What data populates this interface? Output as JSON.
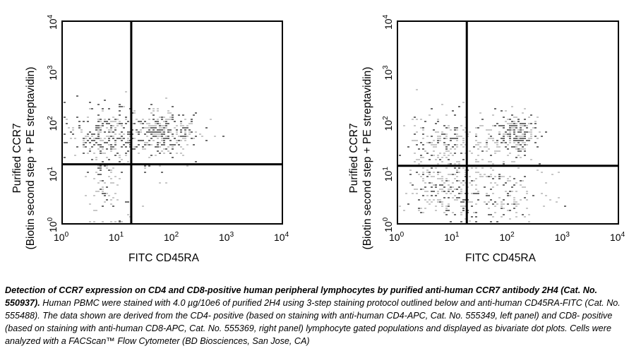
{
  "chart_data": [
    {
      "type": "scatter",
      "subtype": "flow-cytometry-dot-plot",
      "panel": "left (CD4-positive gated)",
      "title": "",
      "xlabel": "FITC CD45RA",
      "ylabel_line1": "Purified CCR7",
      "ylabel_line2": "(Biotin second step + PE streptavidin)",
      "xscale": "log",
      "yscale": "log",
      "xlim": [
        1,
        10000
      ],
      "ylim": [
        1,
        10000
      ],
      "x_ticks": [
        "10^0",
        "10^1",
        "10^2",
        "10^3",
        "10^4"
      ],
      "y_ticks": [
        "10^0",
        "10^1",
        "10^2",
        "10^3",
        "10^4"
      ],
      "quadrant_gate": {
        "x": 18,
        "y": 15
      },
      "grid": false,
      "populations": [
        {
          "name": "CD45RA- CCR7+",
          "x_center": 6,
          "y_center": 60,
          "x_spread_decades": 0.35,
          "y_spread_decades": 0.3,
          "density": "high",
          "count": 260
        },
        {
          "name": "CD45RA+ CCR7+",
          "x_center": 60,
          "y_center": 65,
          "x_spread_decades": 0.35,
          "y_spread_decades": 0.22,
          "density": "high",
          "count": 300
        },
        {
          "name": "CD45RA- CCR7-",
          "x_center": 6,
          "y_center": 5,
          "x_spread_decades": 0.2,
          "y_spread_decades": 0.35,
          "density": "low",
          "count": 70
        },
        {
          "name": "CD45RA+ CCR7- (sparse)",
          "x_center": 40,
          "y_center": 8,
          "x_spread_decades": 0.35,
          "y_spread_decades": 0.3,
          "density": "very low",
          "count": 8
        }
      ]
    },
    {
      "type": "scatter",
      "subtype": "flow-cytometry-dot-plot",
      "panel": "right (CD8-positive gated)",
      "title": "",
      "xlabel": "FITC CD45RA",
      "ylabel_line1": "Purified CCR7",
      "ylabel_line2": "(Biotin second step + PE streptavidin)",
      "xscale": "log",
      "yscale": "log",
      "xlim": [
        1,
        10000
      ],
      "ylim": [
        1,
        10000
      ],
      "x_ticks": [
        "10^0",
        "10^1",
        "10^2",
        "10^3",
        "10^4"
      ],
      "y_ticks": [
        "10^0",
        "10^1",
        "10^2",
        "10^3",
        "10^4"
      ],
      "quadrant_gate": {
        "x": 18,
        "y": 14
      },
      "grid": false,
      "populations": [
        {
          "name": "CD45RA- CCR7+",
          "x_center": 6,
          "y_center": 40,
          "x_spread_decades": 0.3,
          "y_spread_decades": 0.3,
          "density": "medium",
          "count": 170
        },
        {
          "name": "CD45RA+ CCR7+",
          "x_center": 150,
          "y_center": 60,
          "x_spread_decades": 0.2,
          "y_spread_decades": 0.2,
          "density": "high",
          "count": 190
        },
        {
          "name": "CD45RA+ CCR7+ (diffuse)",
          "x_center": 40,
          "y_center": 50,
          "x_spread_decades": 0.35,
          "y_spread_decades": 0.3,
          "density": "low",
          "count": 80
        },
        {
          "name": "CD45RA- CCR7-",
          "x_center": 6,
          "y_center": 5,
          "x_spread_decades": 0.3,
          "y_spread_decades": 0.3,
          "density": "medium",
          "count": 200
        },
        {
          "name": "CD45RA+ CCR7-",
          "x_center": 70,
          "y_center": 4,
          "x_spread_decades": 0.45,
          "y_spread_decades": 0.35,
          "density": "medium",
          "count": 180
        }
      ]
    }
  ],
  "caption": {
    "bold": "Detection of CCR7 expression on CD4 and CD8-positive human peripheral lymphocytes by purified anti-human CCR7 antibody 2H4 (Cat. No. 550937).",
    "text": " Human PBMC were stained with 4.0 µg/10e6 of purified 2H4 using 3-step staining protocol outlined below and anti-human CD45RA-FITC (Cat. No. 555488). The data shown are derived from the CD4- positive (based on staining with anti-human CD4-APC, Cat. No. 555349, left panel) and CD8- positive (based on staining with anti-human CD8-APC, Cat. No. 555369, right panel) lymphocyte gated populations and displayed as bivariate dot plots. Cells were analyzed with a FACScan™ Flow Cytometer (BD Biosciences, San Jose, CA)"
  },
  "colors": {
    "gate_line": "#000000",
    "dot_dark": "#6e6e6e",
    "dot_light": "#c8c8c8"
  }
}
